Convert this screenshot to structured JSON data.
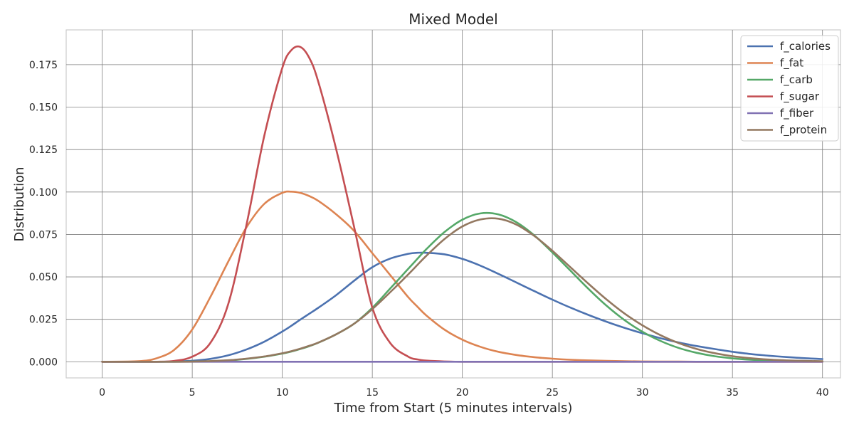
{
  "chart_data": {
    "type": "line",
    "title": "Mixed Model",
    "xlabel": "Time from Start (5 minutes intervals)",
    "ylabel": "Distribution",
    "xlim": [
      -2,
      41
    ],
    "ylim": [
      -0.0095,
      0.1955
    ],
    "xticks": [
      0,
      5,
      10,
      15,
      20,
      25,
      30,
      35,
      40
    ],
    "xtick_labels": [
      "0",
      "5",
      "10",
      "15",
      "20",
      "25",
      "30",
      "35",
      "40"
    ],
    "yticks": [
      0.0,
      0.025,
      0.05,
      0.075,
      0.1,
      0.125,
      0.15,
      0.175
    ],
    "ytick_labels": [
      "0.000",
      "0.025",
      "0.050",
      "0.075",
      "0.100",
      "0.125",
      "0.150",
      "0.175"
    ],
    "grid": true,
    "legend_position": "top-right",
    "x": [
      0,
      2,
      3,
      4,
      5,
      6,
      7,
      8,
      9,
      10,
      10.5,
      11,
      11.5,
      12,
      13,
      14,
      15,
      16,
      17,
      17.5,
      18,
      19,
      20,
      21,
      22,
      23,
      24,
      25,
      26,
      27,
      28,
      29,
      30,
      31,
      32,
      33,
      34,
      35,
      36,
      37,
      38,
      39,
      40
    ],
    "series": [
      {
        "name": "f_calories",
        "color": "#4c72b0",
        "values": [
          0.0,
          0.0,
          0.0,
          0.0002,
          0.0006,
          0.0017,
          0.0038,
          0.0072,
          0.0118,
          0.0178,
          0.0212,
          0.0248,
          0.0283,
          0.0318,
          0.0393,
          0.0478,
          0.0557,
          0.0608,
          0.0636,
          0.0642,
          0.0642,
          0.0633,
          0.0606,
          0.0566,
          0.0518,
          0.0467,
          0.0416,
          0.0366,
          0.0319,
          0.0276,
          0.0236,
          0.02,
          0.0168,
          0.0139,
          0.0114,
          0.0093,
          0.0075,
          0.0059,
          0.0046,
          0.0036,
          0.0028,
          0.0021,
          0.0016
        ]
      },
      {
        "name": "f_fat",
        "color": "#dd8452",
        "values": [
          0.0,
          0.0003,
          0.002,
          0.007,
          0.019,
          0.038,
          0.059,
          0.079,
          0.093,
          0.0995,
          0.1002,
          0.0995,
          0.0976,
          0.0948,
          0.0868,
          0.077,
          0.064,
          0.051,
          0.038,
          0.0325,
          0.0273,
          0.019,
          0.013,
          0.0088,
          0.0059,
          0.004,
          0.0027,
          0.0018,
          0.0012,
          0.0008,
          0.0005,
          0.0003,
          0.0002,
          0.0001,
          0.0001,
          0.0,
          0.0,
          0.0,
          0.0,
          0.0,
          0.0,
          0.0,
          0.0
        ]
      },
      {
        "name": "f_carb",
        "color": "#55a868",
        "values": [
          0.0,
          0.0,
          0.0,
          0.0,
          0.0001,
          0.0003,
          0.0008,
          0.0017,
          0.003,
          0.0048,
          0.006,
          0.0075,
          0.0092,
          0.0112,
          0.0162,
          0.0225,
          0.0318,
          0.0432,
          0.0548,
          0.0606,
          0.0663,
          0.0763,
          0.0837,
          0.0874,
          0.0868,
          0.0822,
          0.0744,
          0.0644,
          0.0537,
          0.043,
          0.0331,
          0.0246,
          0.0177,
          0.0123,
          0.0082,
          0.0053,
          0.0033,
          0.002,
          0.0012,
          0.0007,
          0.0004,
          0.0002,
          0.0001
        ]
      },
      {
        "name": "f_sugar",
        "color": "#c44e52",
        "values": [
          0.0,
          0.0,
          0.0,
          0.0005,
          0.003,
          0.011,
          0.034,
          0.08,
          0.133,
          0.173,
          0.1835,
          0.1855,
          0.179,
          0.165,
          0.125,
          0.079,
          0.032,
          0.011,
          0.003,
          0.0014,
          0.0007,
          0.0002,
          0.0,
          0.0,
          0.0,
          0.0,
          0.0,
          0.0,
          0.0,
          0.0,
          0.0,
          0.0,
          0.0,
          0.0,
          0.0,
          0.0,
          0.0,
          0.0,
          0.0,
          0.0,
          0.0,
          0.0,
          0.0
        ]
      },
      {
        "name": "f_fiber",
        "color": "#8172b3",
        "values": [
          0.0,
          0.0,
          0.0,
          0.0,
          0.0,
          0.0,
          0.0,
          0.0,
          0.0,
          0.0,
          0.0,
          0.0,
          0.0,
          0.0,
          0.0,
          0.0,
          0.0,
          0.0,
          0.0,
          0.0,
          0.0,
          0.0,
          0.0,
          0.0,
          0.0,
          0.0,
          0.0,
          0.0,
          0.0,
          0.0,
          0.0,
          0.0,
          0.0,
          0.0,
          0.0,
          0.0,
          0.0,
          0.0,
          0.0,
          0.0,
          0.0,
          0.0,
          0.0
        ]
      },
      {
        "name": "f_protein",
        "color": "#937860",
        "values": [
          0.0,
          0.0,
          0.0,
          0.0,
          0.0001,
          0.0004,
          0.0009,
          0.0018,
          0.0031,
          0.005,
          0.0062,
          0.0077,
          0.0094,
          0.0113,
          0.0162,
          0.0225,
          0.031,
          0.041,
          0.0515,
          0.057,
          0.0624,
          0.0722,
          0.0797,
          0.0838,
          0.0843,
          0.0808,
          0.0741,
          0.0654,
          0.0557,
          0.046,
          0.0368,
          0.0285,
          0.0215,
          0.0157,
          0.0111,
          0.0076,
          0.0051,
          0.0033,
          0.0021,
          0.0013,
          0.0008,
          0.0005,
          0.0003
        ]
      }
    ]
  }
}
